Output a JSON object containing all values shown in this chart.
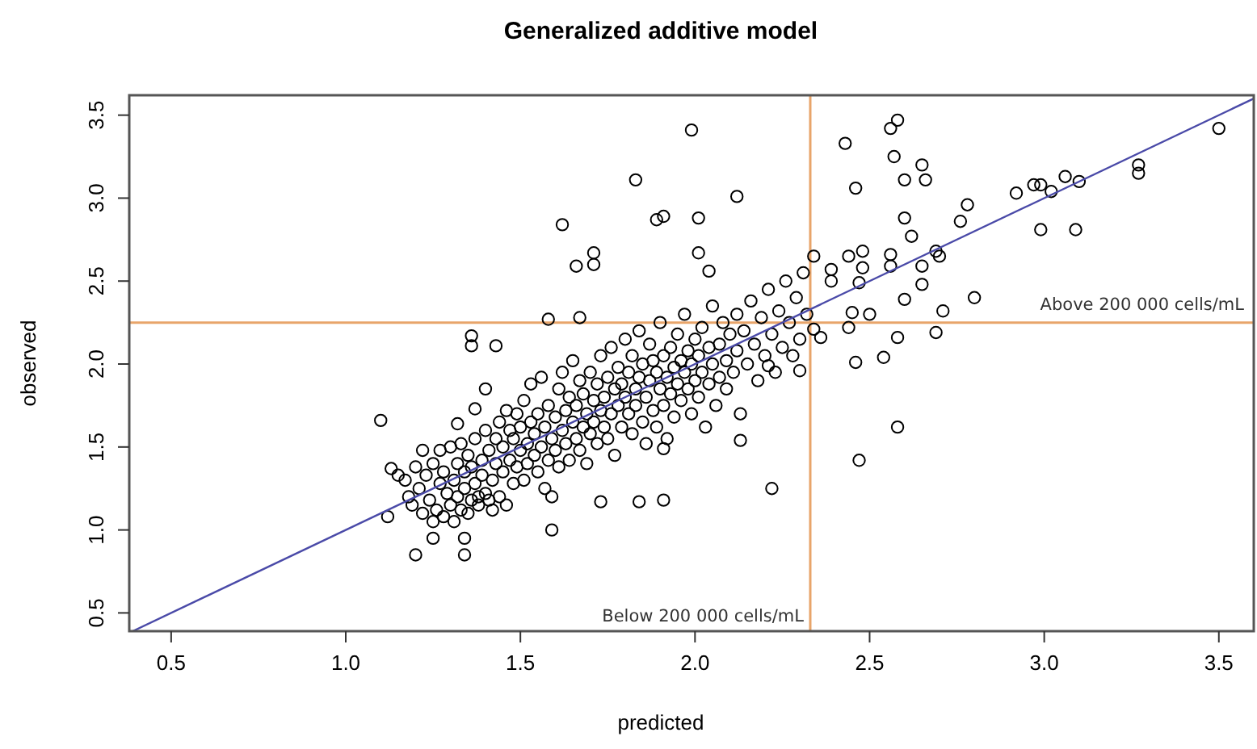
{
  "chart_data": {
    "type": "scatter",
    "title": "Generalized additive model",
    "xlabel": "predicted",
    "ylabel": "observed",
    "xlim": [
      0.38,
      3.6
    ],
    "ylim": [
      0.39,
      3.62
    ],
    "xticks": [
      0.5,
      {
        "value": 1,
        "label": "1.0"
      },
      1.5,
      {
        "value": 2,
        "label": "2.0"
      },
      2.5,
      {
        "value": 3,
        "label": "3.0"
      },
      3.5
    ],
    "yticks": [
      0.5,
      {
        "value": 1,
        "label": "1.0"
      },
      1.5,
      {
        "value": 2,
        "label": "2.0"
      },
      2.5,
      {
        "value": 3,
        "label": "3.0"
      },
      3.5
    ],
    "grid": false,
    "ref_lines": [
      {
        "axis": "x",
        "value": 2.33,
        "color": "#e8a56a",
        "label": "Below 200 000 cells/mL"
      },
      {
        "axis": "y",
        "value": 2.25,
        "color": "#e8a56a",
        "label": "Above 200 000 cells/mL"
      }
    ],
    "series": [
      {
        "type": "scatter",
        "color": "#000000",
        "marker": "circle",
        "x": [
          1.62,
          1.66,
          1.71,
          1.71,
          1.58,
          1.67,
          1.83,
          1.36,
          1.36,
          1.43,
          1.99,
          2.12,
          1.89,
          1.91,
          2.01,
          2.01,
          2.04,
          2.43,
          2.58,
          2.56,
          2.46,
          2.57,
          2.65,
          2.66,
          2.6,
          2.6,
          2.62,
          2.78,
          2.76,
          2.92,
          2.97,
          2.99,
          3.02,
          3.06,
          3.1,
          2.99,
          3.09,
          3.27,
          3.27,
          3.5,
          2.34,
          2.44,
          2.48,
          2.48,
          2.56,
          2.56,
          2.39,
          2.39,
          2.47,
          2.65,
          2.65,
          2.69,
          2.7,
          2.6,
          2.8,
          2.71,
          2.45,
          2.5,
          2.44,
          2.34,
          2.36,
          2.58,
          2.69,
          2.46,
          2.54,
          2.3,
          2.21,
          2.58,
          2.47,
          2.22,
          1.84,
          1.91,
          2.13,
          1.91,
          1.1,
          1.12,
          1.2,
          1.34,
          1.34,
          1.25,
          1.59,
          1.73,
          1.4,
          1.37,
          1.32,
          1.13,
          1.15,
          1.17,
          1.18,
          1.19,
          1.2,
          1.21,
          1.22,
          1.22,
          1.23,
          1.24,
          1.25,
          1.25,
          1.26,
          1.27,
          1.27,
          1.28,
          1.28,
          1.29,
          1.3,
          1.3,
          1.31,
          1.31,
          1.32,
          1.32,
          1.33,
          1.33,
          1.34,
          1.34,
          1.35,
          1.35,
          1.36,
          1.36,
          1.37,
          1.37,
          1.38,
          1.38,
          1.39,
          1.39,
          1.4,
          1.4,
          1.41,
          1.41,
          1.42,
          1.42,
          1.43,
          1.43,
          1.44,
          1.44,
          1.45,
          1.45,
          1.46,
          1.46,
          1.47,
          1.47,
          1.48,
          1.48,
          1.49,
          1.49,
          1.5,
          1.5,
          1.51,
          1.51,
          1.52,
          1.52,
          1.53,
          1.53,
          1.54,
          1.54,
          1.55,
          1.55,
          1.56,
          1.56,
          1.57,
          1.57,
          1.58,
          1.58,
          1.59,
          1.59,
          1.6,
          1.6,
          1.61,
          1.61,
          1.62,
          1.62,
          1.63,
          1.63,
          1.64,
          1.64,
          1.65,
          1.65,
          1.66,
          1.66,
          1.67,
          1.67,
          1.68,
          1.68,
          1.69,
          1.69,
          1.7,
          1.7,
          1.71,
          1.71,
          1.72,
          1.72,
          1.73,
          1.73,
          1.74,
          1.74,
          1.75,
          1.75,
          1.76,
          1.76,
          1.77,
          1.77,
          1.78,
          1.78,
          1.79,
          1.79,
          1.8,
          1.8,
          1.81,
          1.81,
          1.82,
          1.82,
          1.83,
          1.83,
          1.84,
          1.84,
          1.85,
          1.85,
          1.86,
          1.86,
          1.87,
          1.87,
          1.88,
          1.88,
          1.89,
          1.89,
          1.9,
          1.9,
          1.91,
          1.91,
          1.92,
          1.92,
          1.93,
          1.93,
          1.94,
          1.94,
          1.95,
          1.95,
          1.96,
          1.96,
          1.97,
          1.97,
          1.98,
          1.98,
          1.99,
          1.99,
          2.0,
          2.0,
          2.01,
          2.01,
          2.02,
          2.02,
          2.03,
          2.04,
          2.04,
          2.05,
          2.05,
          2.06,
          2.07,
          2.07,
          2.08,
          2.09,
          2.09,
          2.1,
          2.11,
          2.12,
          2.12,
          2.13,
          2.14,
          2.15,
          2.16,
          2.17,
          2.18,
          2.19,
          2.2,
          2.21,
          2.22,
          2.23,
          2.24,
          2.25,
          2.26,
          2.27,
          2.28,
          2.29,
          2.3,
          2.31,
          2.32
        ],
        "values": [
          2.84,
          2.59,
          2.67,
          2.6,
          2.27,
          2.28,
          3.11,
          2.17,
          2.11,
          2.11,
          3.41,
          3.01,
          2.87,
          2.89,
          2.88,
          2.67,
          2.56,
          3.33,
          3.47,
          3.42,
          3.06,
          3.25,
          3.2,
          3.11,
          3.11,
          2.88,
          2.77,
          2.96,
          2.86,
          3.03,
          3.08,
          3.08,
          3.04,
          3.13,
          3.1,
          2.81,
          2.81,
          3.2,
          3.15,
          3.42,
          2.65,
          2.65,
          2.68,
          2.58,
          2.66,
          2.59,
          2.57,
          2.5,
          2.49,
          2.59,
          2.48,
          2.68,
          2.65,
          2.39,
          2.4,
          2.32,
          2.31,
          2.3,
          2.22,
          2.21,
          2.16,
          2.16,
          2.19,
          2.01,
          2.04,
          1.96,
          1.99,
          1.62,
          1.42,
          1.25,
          1.17,
          1.18,
          1.54,
          1.49,
          1.66,
          1.08,
          0.85,
          0.85,
          0.95,
          0.95,
          1.0,
          1.17,
          1.85,
          1.73,
          1.64,
          1.37,
          1.33,
          1.3,
          1.2,
          1.15,
          1.38,
          1.25,
          1.48,
          1.1,
          1.33,
          1.18,
          1.4,
          1.05,
          1.12,
          1.48,
          1.28,
          1.35,
          1.08,
          1.22,
          1.5,
          1.15,
          1.3,
          1.05,
          1.4,
          1.2,
          1.52,
          1.12,
          1.35,
          1.25,
          1.45,
          1.1,
          1.18,
          1.38,
          1.28,
          1.55,
          1.2,
          1.15,
          1.33,
          1.42,
          1.22,
          1.6,
          1.18,
          1.48,
          1.3,
          1.12,
          1.4,
          1.55,
          1.2,
          1.65,
          1.35,
          1.5,
          1.15,
          1.72,
          1.42,
          1.6,
          1.28,
          1.55,
          1.7,
          1.38,
          1.48,
          1.62,
          1.3,
          1.78,
          1.52,
          1.4,
          1.65,
          1.88,
          1.45,
          1.58,
          1.35,
          1.7,
          1.5,
          1.92,
          1.62,
          1.25,
          1.42,
          1.75,
          1.55,
          1.2,
          1.68,
          1.48,
          1.85,
          1.38,
          1.6,
          1.95,
          1.52,
          1.72,
          1.42,
          1.8,
          1.65,
          2.02,
          1.55,
          1.75,
          1.48,
          1.9,
          1.62,
          1.82,
          1.7,
          1.4,
          1.58,
          1.95,
          1.78,
          1.65,
          1.88,
          1.52,
          1.72,
          2.05,
          1.62,
          1.8,
          1.92,
          1.55,
          1.7,
          2.1,
          1.85,
          1.45,
          1.75,
          1.98,
          1.62,
          1.88,
          1.8,
          2.15,
          1.7,
          1.95,
          1.58,
          2.05,
          1.85,
          1.75,
          1.92,
          2.2,
          1.65,
          2.0,
          1.8,
          1.52,
          1.9,
          2.12,
          1.72,
          2.02,
          1.95,
          1.62,
          1.85,
          2.25,
          2.05,
          1.75,
          1.92,
          1.55,
          2.1,
          1.82,
          1.98,
          1.68,
          2.18,
          1.88,
          2.02,
          1.78,
          1.95,
          2.3,
          1.85,
          2.08,
          1.7,
          2.0,
          2.15,
          1.9,
          1.8,
          2.05,
          2.22,
          1.95,
          1.62,
          2.1,
          1.88,
          2.0,
          2.35,
          1.75,
          2.12,
          1.92,
          2.25,
          2.02,
          1.85,
          2.18,
          1.95,
          2.3,
          2.08,
          1.7,
          2.2,
          2.0,
          2.38,
          2.12,
          1.9,
          2.28,
          2.05,
          2.45,
          2.18,
          1.95,
          2.32,
          2.1,
          2.5,
          2.25,
          2.05,
          2.4,
          2.15,
          2.55,
          2.3
        ]
      },
      {
        "type": "line",
        "color": "#4a4aa8",
        "marker": "none",
        "x": [
          0.39,
          3.6
        ],
        "values": [
          0.39,
          3.6
        ]
      }
    ]
  }
}
